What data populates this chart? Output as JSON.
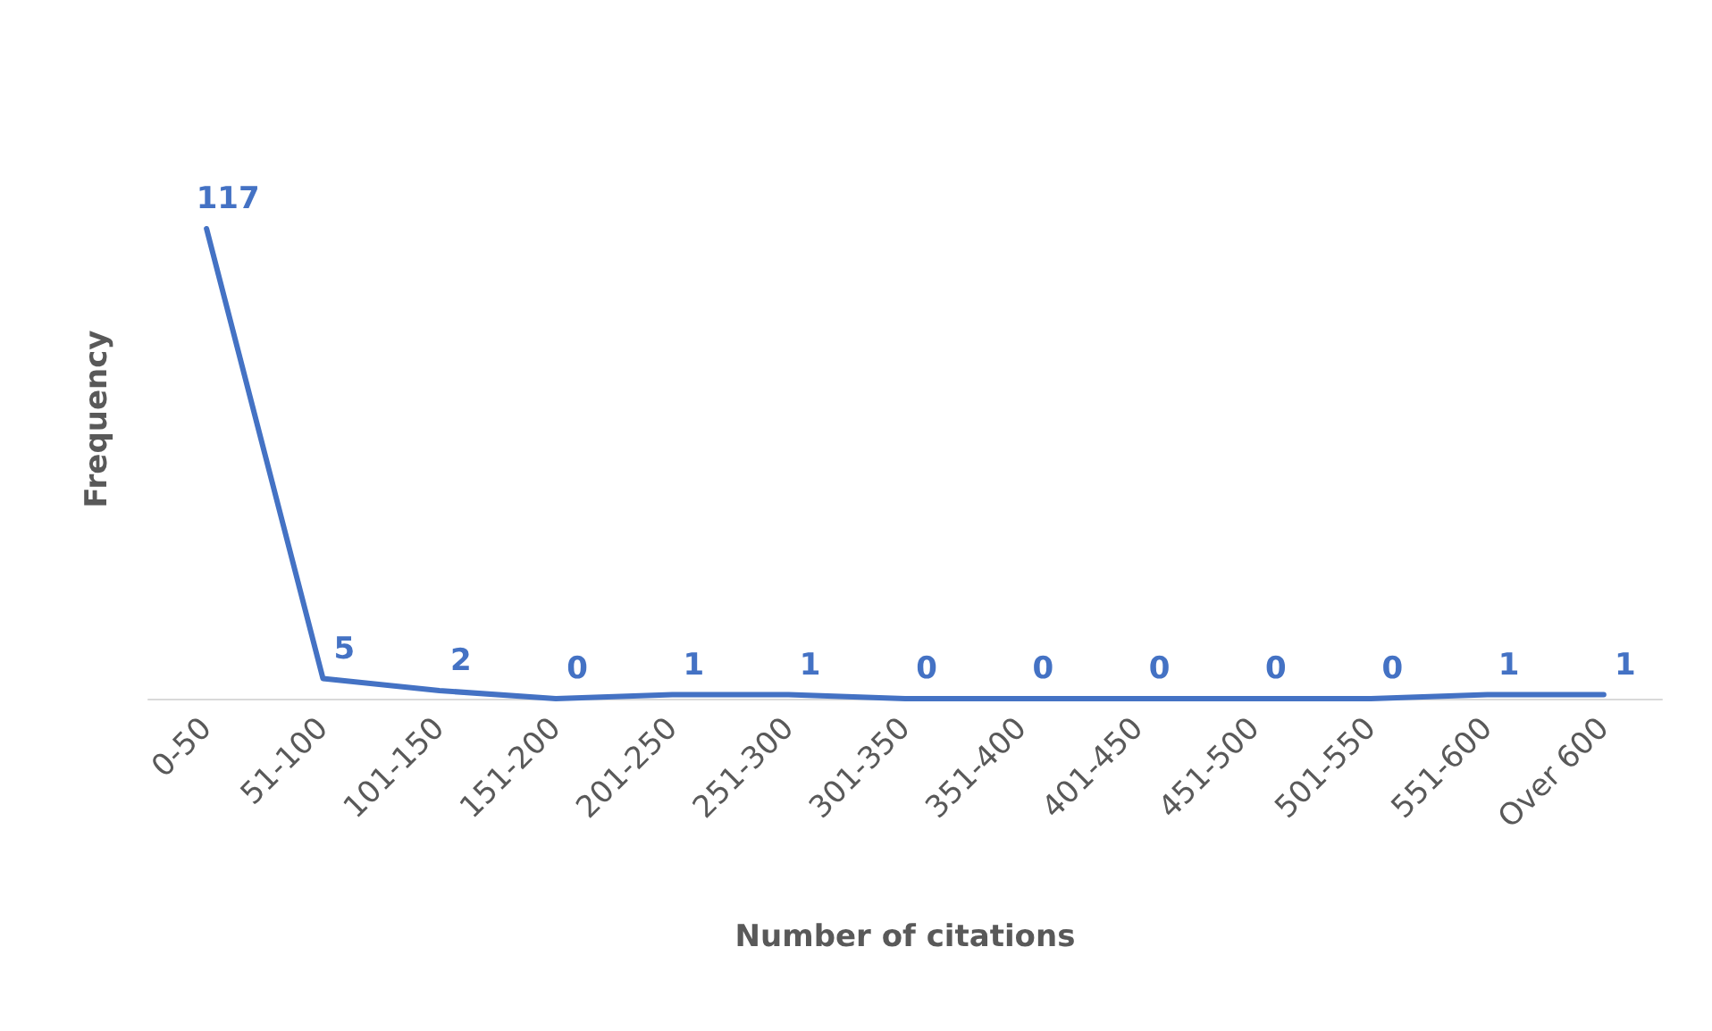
{
  "chart_data": {
    "type": "line",
    "xlabel": "Number of citations",
    "ylabel": "Frequency",
    "categories": [
      "0-50",
      "51-100",
      "101-150",
      "151-200",
      "201-250",
      "251-300",
      "301-350",
      "351-400",
      "401-450",
      "451-500",
      "501-550",
      "551-600",
      "Over 600"
    ],
    "series": [
      {
        "color": "#4472c4",
        "values": [
          117,
          5,
          2,
          0,
          1,
          1,
          0,
          0,
          0,
          0,
          0,
          1,
          1
        ]
      }
    ],
    "data_labels": true,
    "grid": false,
    "line_style": "solid"
  }
}
